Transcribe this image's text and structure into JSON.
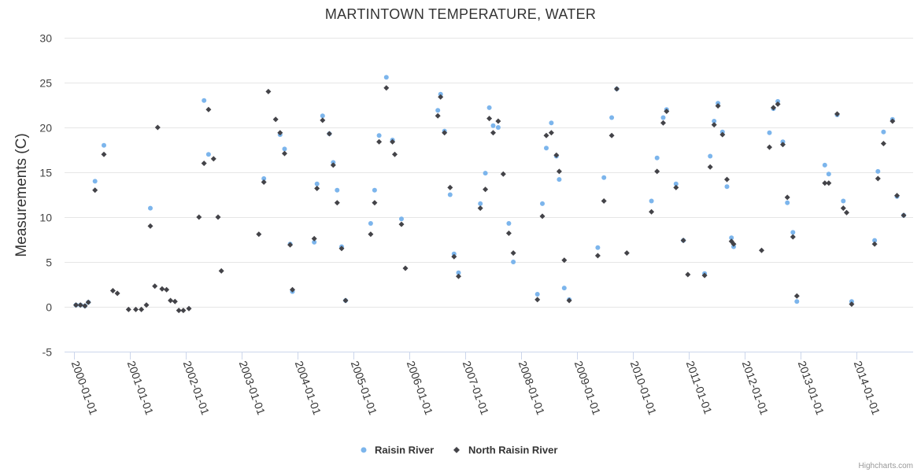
{
  "chart_data": {
    "type": "scatter",
    "title": "MARTINTOWN TEMPERATURE, WATER",
    "xlabel": "",
    "ylabel": "Measurements (C)",
    "ylim": [
      -5,
      30
    ],
    "yticks": [
      -5,
      0,
      5,
      10,
      15,
      20,
      25,
      30
    ],
    "xticks": [
      "2000-01-01",
      "2001-01-01",
      "2002-01-01",
      "2003-01-01",
      "2004-01-01",
      "2005-01-01",
      "2006-01-01",
      "2007-01-01",
      "2008-01-01",
      "2009-01-01",
      "2010-01-01",
      "2011-01-01",
      "2012-01-01",
      "2013-01-01",
      "2014-01-01"
    ],
    "xlim": [
      1999.92,
      2014.84
    ],
    "grid": true,
    "legend_position": "bottom-center",
    "series": [
      {
        "name": "Raisin River",
        "color": "#7cb5ec",
        "marker": "circle",
        "points": [
          [
            2000.04,
            0.2
          ],
          [
            2000.12,
            0.2
          ],
          [
            2000.2,
            0.1
          ],
          [
            2000.26,
            0.5
          ],
          [
            2000.38,
            14
          ],
          [
            2000.54,
            18
          ],
          [
            2001.37,
            11
          ],
          [
            2002.33,
            23
          ],
          [
            2002.41,
            17
          ],
          [
            2003.4,
            14.3
          ],
          [
            2003.69,
            19.2
          ],
          [
            2003.77,
            17.6
          ],
          [
            2003.87,
            7
          ],
          [
            2003.91,
            1.7
          ],
          [
            2004.3,
            7.2
          ],
          [
            2004.35,
            13.7
          ],
          [
            2004.45,
            21.3
          ],
          [
            2004.57,
            19.3
          ],
          [
            2004.64,
            16.1
          ],
          [
            2004.71,
            13
          ],
          [
            2004.79,
            6.7
          ],
          [
            2004.86,
            0.7
          ],
          [
            2005.31,
            9.3
          ],
          [
            2005.38,
            13
          ],
          [
            2005.46,
            19.1
          ],
          [
            2005.59,
            25.6
          ],
          [
            2005.7,
            18.6
          ],
          [
            2005.86,
            9.8
          ],
          [
            2006.51,
            21.9
          ],
          [
            2006.56,
            23.7
          ],
          [
            2006.63,
            19.6
          ],
          [
            2006.73,
            12.5
          ],
          [
            2006.8,
            5.9
          ],
          [
            2006.88,
            3.8
          ],
          [
            2007.27,
            11.5
          ],
          [
            2007.36,
            14.9
          ],
          [
            2007.43,
            22.2
          ],
          [
            2007.5,
            20.2
          ],
          [
            2007.59,
            20
          ],
          [
            2007.78,
            9.3
          ],
          [
            2007.86,
            5
          ],
          [
            2008.29,
            1.4
          ],
          [
            2008.38,
            11.5
          ],
          [
            2008.45,
            17.7
          ],
          [
            2008.54,
            20.5
          ],
          [
            2008.63,
            16.8
          ],
          [
            2008.68,
            14.2
          ],
          [
            2008.77,
            2.1
          ],
          [
            2008.86,
            0.8
          ],
          [
            2009.37,
            6.6
          ],
          [
            2009.48,
            14.4
          ],
          [
            2009.62,
            21.1
          ],
          [
            2009.71,
            24.3
          ],
          [
            2010.33,
            11.8
          ],
          [
            2010.43,
            16.6
          ],
          [
            2010.54,
            21.1
          ],
          [
            2010.6,
            22
          ],
          [
            2010.77,
            13.7
          ],
          [
            2010.9,
            7.4
          ],
          [
            2011.28,
            3.7
          ],
          [
            2011.38,
            16.8
          ],
          [
            2011.45,
            20.7
          ],
          [
            2011.52,
            22.7
          ],
          [
            2011.6,
            19.5
          ],
          [
            2011.68,
            13.4
          ],
          [
            2011.76,
            7.7
          ],
          [
            2011.8,
            6.7
          ],
          [
            2012.44,
            19.4
          ],
          [
            2012.51,
            22.1
          ],
          [
            2012.59,
            22.9
          ],
          [
            2012.68,
            18.4
          ],
          [
            2012.76,
            11.6
          ],
          [
            2012.86,
            8.3
          ],
          [
            2012.93,
            0.6
          ],
          [
            2013.43,
            15.8
          ],
          [
            2013.5,
            14.8
          ],
          [
            2013.65,
            21.4
          ],
          [
            2013.76,
            11.8
          ],
          [
            2013.91,
            0.6
          ],
          [
            2014.32,
            7.4
          ],
          [
            2014.38,
            15.1
          ],
          [
            2014.48,
            19.5
          ],
          [
            2014.64,
            20.9
          ],
          [
            2014.72,
            12.3
          ],
          [
            2014.84,
            10.2
          ]
        ]
      },
      {
        "name": "North Raisin River",
        "color": "#434348",
        "marker": "diamond",
        "points": [
          [
            2000.04,
            0.2
          ],
          [
            2000.12,
            0.2
          ],
          [
            2000.2,
            0.1
          ],
          [
            2000.26,
            0.5
          ],
          [
            2000.38,
            13
          ],
          [
            2000.54,
            17
          ],
          [
            2000.7,
            1.8
          ],
          [
            2000.78,
            1.5
          ],
          [
            2000.98,
            -0.3
          ],
          [
            2001.11,
            -0.3
          ],
          [
            2001.21,
            -0.3
          ],
          [
            2001.3,
            0.2
          ],
          [
            2001.37,
            9
          ],
          [
            2001.45,
            2.3
          ],
          [
            2001.5,
            20
          ],
          [
            2001.58,
            2
          ],
          [
            2001.66,
            1.9
          ],
          [
            2001.73,
            0.7
          ],
          [
            2001.81,
            0.6
          ],
          [
            2001.88,
            -0.4
          ],
          [
            2001.96,
            -0.4
          ],
          [
            2002.06,
            -0.2
          ],
          [
            2002.24,
            10
          ],
          [
            2002.33,
            16
          ],
          [
            2002.41,
            22
          ],
          [
            2002.5,
            16.5
          ],
          [
            2002.58,
            10
          ],
          [
            2002.64,
            4
          ],
          [
            2003.31,
            8.1
          ],
          [
            2003.4,
            13.9
          ],
          [
            2003.48,
            24
          ],
          [
            2003.61,
            20.9
          ],
          [
            2003.69,
            19.4
          ],
          [
            2003.77,
            17.1
          ],
          [
            2003.87,
            6.9
          ],
          [
            2003.91,
            1.9
          ],
          [
            2004.3,
            7.6
          ],
          [
            2004.35,
            13.2
          ],
          [
            2004.45,
            20.8
          ],
          [
            2004.57,
            19.3
          ],
          [
            2004.64,
            15.8
          ],
          [
            2004.71,
            11.6
          ],
          [
            2004.79,
            6.5
          ],
          [
            2004.86,
            0.7
          ],
          [
            2005.31,
            8.1
          ],
          [
            2005.38,
            11.6
          ],
          [
            2005.46,
            18.4
          ],
          [
            2005.59,
            24.4
          ],
          [
            2005.7,
            18.4
          ],
          [
            2005.74,
            17
          ],
          [
            2005.86,
            9.2
          ],
          [
            2005.93,
            4.3
          ],
          [
            2006.51,
            21.3
          ],
          [
            2006.56,
            23.4
          ],
          [
            2006.63,
            19.4
          ],
          [
            2006.73,
            13.3
          ],
          [
            2006.8,
            5.6
          ],
          [
            2006.88,
            3.4
          ],
          [
            2007.27,
            11
          ],
          [
            2007.36,
            13.1
          ],
          [
            2007.43,
            21
          ],
          [
            2007.5,
            19.4
          ],
          [
            2007.59,
            20.7
          ],
          [
            2007.68,
            14.8
          ],
          [
            2007.78,
            8.2
          ],
          [
            2007.86,
            6
          ],
          [
            2008.29,
            0.8
          ],
          [
            2008.38,
            10.1
          ],
          [
            2008.45,
            19.1
          ],
          [
            2008.54,
            19.4
          ],
          [
            2008.63,
            16.9
          ],
          [
            2008.68,
            15.1
          ],
          [
            2008.77,
            5.2
          ],
          [
            2008.86,
            0.7
          ],
          [
            2009.37,
            5.7
          ],
          [
            2009.48,
            11.8
          ],
          [
            2009.62,
            19.1
          ],
          [
            2009.71,
            24.3
          ],
          [
            2009.89,
            6
          ],
          [
            2010.33,
            10.6
          ],
          [
            2010.43,
            15.1
          ],
          [
            2010.54,
            20.5
          ],
          [
            2010.6,
            21.8
          ],
          [
            2010.77,
            13.3
          ],
          [
            2010.9,
            7.4
          ],
          [
            2010.98,
            3.6
          ],
          [
            2011.28,
            3.5
          ],
          [
            2011.38,
            15.6
          ],
          [
            2011.45,
            20.3
          ],
          [
            2011.52,
            22.4
          ],
          [
            2011.6,
            19.2
          ],
          [
            2011.68,
            14.2
          ],
          [
            2011.76,
            7.3
          ],
          [
            2011.8,
            7
          ],
          [
            2012.3,
            6.3
          ],
          [
            2012.44,
            17.8
          ],
          [
            2012.51,
            22.2
          ],
          [
            2012.59,
            22.6
          ],
          [
            2012.68,
            18.1
          ],
          [
            2012.76,
            12.2
          ],
          [
            2012.86,
            7.8
          ],
          [
            2012.93,
            1.2
          ],
          [
            2013.43,
            13.8
          ],
          [
            2013.5,
            13.8
          ],
          [
            2013.65,
            21.5
          ],
          [
            2013.76,
            11
          ],
          [
            2013.82,
            10.5
          ],
          [
            2013.91,
            0.3
          ],
          [
            2014.32,
            7
          ],
          [
            2014.38,
            14.3
          ],
          [
            2014.48,
            18.2
          ],
          [
            2014.64,
            20.7
          ],
          [
            2014.72,
            12.4
          ],
          [
            2014.84,
            10.2
          ]
        ]
      }
    ]
  },
  "credits": "Highcharts.com"
}
